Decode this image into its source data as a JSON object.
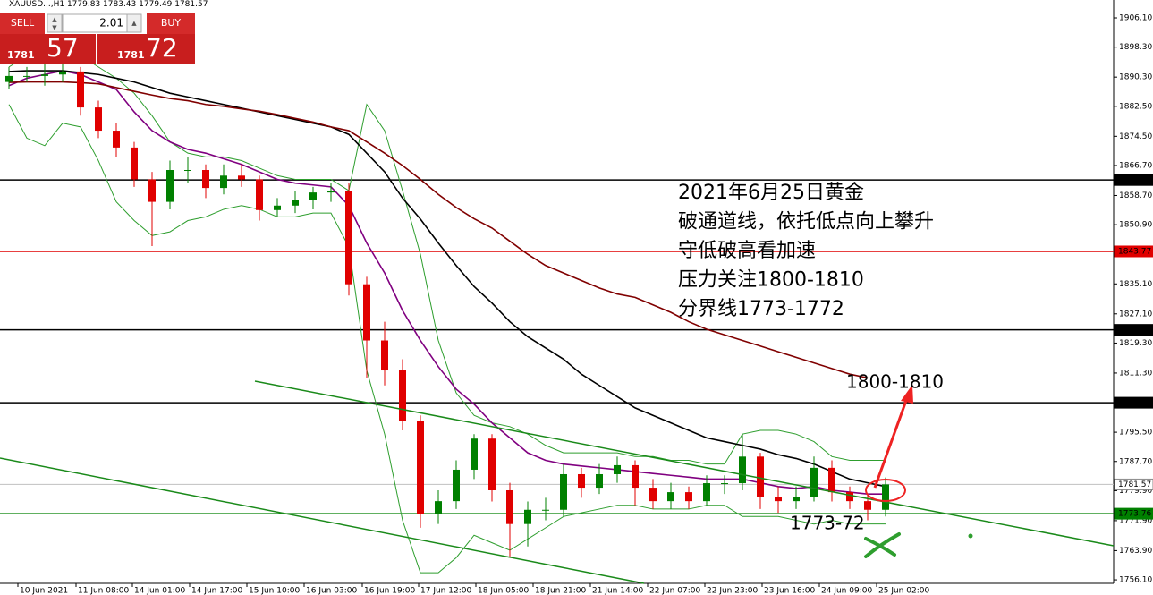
{
  "ui": {
    "symbol": "XAUUSD...,H1",
    "ohlc": [
      1779.83,
      1783.43,
      1779.49,
      1781.57
    ],
    "sell": "SELL",
    "buy": "BUY",
    "lot": 2.01,
    "sell_small": "1781",
    "sell_big": "57",
    "buy_small": "1781",
    "buy_big": "72"
  },
  "chart_data": {
    "type": "candlestick",
    "annotations": [
      "2021年6月25日黄金",
      "破通道线，依托低点向上攀升",
      "守低破高看加速",
      "压力关注1800-1810",
      "分界线1773-1772"
    ],
    "target_label": "1800-1810",
    "support_label": "1773-72",
    "categories": [
      null,
      null,
      null,
      null,
      null,
      null,
      null,
      null,
      null,
      null,
      null,
      null,
      null,
      null,
      null,
      null,
      null,
      null,
      null,
      null,
      null,
      null,
      null,
      null,
      null,
      null,
      null,
      null,
      null,
      null,
      null,
      null,
      null,
      null,
      null,
      null,
      null,
      null,
      null,
      null,
      null,
      null,
      null,
      null,
      null,
      null,
      null,
      null,
      null,
      null
    ],
    "open": [
      1889,
      1890.6,
      1890.6,
      1891,
      1891.8,
      1882.2,
      1876,
      1871.5,
      1863,
      1857,
      1865.5,
      1865.5,
      1860.7,
      1864,
      1863,
      1854.8,
      1856,
      1857.5,
      1859.5,
      1860,
      1835,
      1820,
      1812,
      1798.6,
      1773.6,
      1777.1,
      1785.5,
      1793.8,
      1780,
      1771,
      1774.8,
      1774.8,
      1784.3,
      1780.7,
      1784.3,
      1786.7,
      1780.7,
      1777.1,
      1779.5,
      1777.1,
      1781.9,
      1781.9,
      1789,
      1778.3,
      1777.1,
      1778.3,
      1786,
      1779.5,
      1777.1,
      1774.8
    ],
    "high": [
      1893,
      1893,
      1894,
      1894,
      1893,
      1884,
      1878,
      1873,
      1865,
      1868,
      1869,
      1867,
      1867,
      1867,
      1864,
      1858,
      1860,
      1861,
      1862,
      1862,
      1837,
      1825,
      1815,
      1800,
      1780,
      1788,
      1795,
      1795,
      1782,
      1777,
      1778,
      1787,
      1786,
      1787,
      1789,
      1788,
      1783,
      1782,
      1781,
      1784,
      1784,
      1795,
      1790,
      1781,
      1781,
      1789,
      1788,
      1781,
      1779,
      1783.43
    ],
    "low": [
      1887,
      1889,
      1888,
      1889,
      1880,
      1874,
      1869,
      1861,
      1845.2,
      1855,
      1862,
      1858,
      1859,
      1861,
      1852,
      1853,
      1854,
      1855,
      1857,
      1832,
      1810,
      1808,
      1796,
      1770,
      1771,
      1775,
      1783,
      1777,
      1762,
      1765,
      1772,
      1773,
      1778,
      1779,
      1782,
      1776,
      1775,
      1775,
      1775,
      1776,
      1779,
      1780,
      1775,
      1774,
      1775,
      1777,
      1777,
      1775,
      1772,
      1773
    ],
    "close": [
      1890.6,
      1890.6,
      1891,
      1891.8,
      1882.2,
      1876,
      1871.5,
      1863,
      1857,
      1865.5,
      1865.5,
      1860.7,
      1864,
      1863,
      1854.8,
      1856,
      1857.5,
      1859.5,
      1860,
      1835,
      1820,
      1812,
      1798.6,
      1773.6,
      1777.1,
      1785.5,
      1793.8,
      1780,
      1771,
      1774.8,
      1774.8,
      1784.3,
      1780.7,
      1784.3,
      1786.7,
      1780.7,
      1777.1,
      1779.5,
      1777.1,
      1781.9,
      1781.9,
      1789,
      1778.3,
      1777.1,
      1778.3,
      1786,
      1779.5,
      1777.1,
      1774.8,
      1781.57
    ],
    "up_color": "#008000",
    "down_color": "#e00000",
    "lines": [
      {
        "color": "#2e9e2e",
        "values": [
          1893,
          1896,
          1897,
          1897,
          1896,
          1893,
          1890,
          1886,
          1880,
          1873,
          1870,
          1869,
          1869,
          1868,
          1866,
          1864,
          1863,
          1863,
          1863,
          1860,
          1883,
          1876,
          1860,
          1843,
          1820,
          1806,
          1800,
          1798,
          1797,
          1795,
          1792,
          1790,
          1790,
          1790,
          1790,
          1789,
          1789,
          1788,
          1788,
          1787,
          1787,
          1795,
          1796,
          1796,
          1795,
          1793,
          1789,
          1788,
          1788,
          1788
        ]
      },
      {
        "color": "#2e9e2e",
        "values": [
          1883,
          1874,
          1872,
          1878,
          1877,
          1868,
          1857,
          1852,
          1848,
          1849,
          1852,
          1853,
          1855,
          1856,
          1855,
          1853,
          1853,
          1854,
          1854,
          1845,
          1812,
          1795,
          1772,
          1758,
          1758,
          1762,
          1768,
          1766,
          1764,
          1767,
          1770,
          1773,
          1774,
          1775,
          1776,
          1776,
          1775,
          1775,
          1775,
          1776,
          1776,
          1773,
          1773,
          1773,
          1772,
          1771,
          1772,
          1771,
          1771,
          1771
        ]
      },
      {
        "color": "#800080",
        "values": [
          1888,
          1890,
          1891,
          1892,
          1891,
          1889,
          1887,
          1881,
          1876,
          1873,
          1871,
          1870,
          1868.5,
          1867,
          1865,
          1863,
          1862,
          1861.5,
          1861,
          1856,
          1846,
          1838,
          1828,
          1820,
          1813,
          1807,
          1803,
          1798,
          1794,
          1790,
          1788,
          1787,
          1786.5,
          1786,
          1785.5,
          1785,
          1784.5,
          1784,
          1783.5,
          1783,
          1783,
          1783,
          1782,
          1781,
          1780.5,
          1781,
          1780,
          1779.5,
          1779,
          1779
        ]
      },
      {
        "color": "#000000",
        "values": [
          1891.8,
          1892,
          1892,
          1892,
          1891.5,
          1891,
          1890,
          1889,
          1887.5,
          1886,
          1885,
          1884,
          1883,
          1882,
          1881,
          1880,
          1879,
          1878,
          1877,
          1875,
          1870,
          1865,
          1858,
          1852.4,
          1846,
          1840,
          1834.4,
          1830,
          1825,
          1821,
          1818,
          1815,
          1811,
          1808,
          1805,
          1802,
          1800,
          1798,
          1796,
          1794,
          1793,
          1792,
          1791,
          1789.5,
          1788.5,
          1787,
          1785,
          1783,
          1782,
          1781
        ]
      },
      {
        "color": "#800000",
        "values": [
          1888.9,
          1889,
          1889,
          1889,
          1888.8,
          1888.5,
          1887.5,
          1886.5,
          1885.5,
          1884.6,
          1884,
          1883,
          1882.5,
          1881.8,
          1881.2,
          1880.3,
          1879.3,
          1878.3,
          1877,
          1876,
          1873,
          1870,
          1866.7,
          1863,
          1859,
          1855.5,
          1852.5,
          1850,
          1846.5,
          1843,
          1840,
          1838,
          1836,
          1834,
          1832.4,
          1831.5,
          1829.5,
          1827.5,
          1825,
          1823,
          1821.5,
          1820,
          1818.5,
          1817,
          1815.5,
          1814,
          1812.5,
          1811,
          1810,
          null
        ]
      }
    ],
    "levels": [
      {
        "value": 1862.83,
        "color": "#000000"
      },
      {
        "value": 1843.77,
        "color": "#e00000"
      },
      {
        "value": 1822.83,
        "color": "#000000"
      },
      {
        "value": 1803.38,
        "color": "#000000"
      },
      {
        "value": 1781.57,
        "color": "#c0c0c0"
      },
      {
        "value": 1773.76,
        "color": "#008000"
      }
    ],
    "ylim": [
      1755.16,
      1910.88
    ],
    "yticks": [
      {
        "value": 1906.1,
        "label": "1906.10"
      },
      {
        "value": 1898.3,
        "label": "1898.30"
      },
      {
        "value": 1890.3,
        "label": "1890.30"
      },
      {
        "value": 1882.5,
        "label": "1882.50"
      },
      {
        "value": 1874.5,
        "label": "1874.50"
      },
      {
        "value": 1866.7,
        "label": "1866.70"
      },
      {
        "value": 1858.7,
        "label": "1858.70"
      },
      {
        "value": 1850.9,
        "label": "1850.90"
      },
      {
        "value": 1835.1,
        "label": "1835.10"
      },
      {
        "value": 1827.1,
        "label": "1827.10"
      },
      {
        "value": 1819.3,
        "label": "1819.30"
      },
      {
        "value": 1811.3,
        "label": "1811.30"
      },
      {
        "value": 1795.5,
        "label": "1795.50"
      },
      {
        "value": 1787.7,
        "label": "1787.70"
      },
      {
        "value": 1779.9,
        "label": "1779.90"
      },
      {
        "value": 1771.9,
        "label": "1771.90"
      },
      {
        "value": 1763.9,
        "label": "1763.90"
      },
      {
        "value": 1756.1,
        "label": "1756.10"
      }
    ],
    "xticks": [
      {
        "value": 0.5,
        "label": "10 Jun 2021"
      },
      {
        "value": 3.75,
        "label": "11 Jun 08:00"
      },
      {
        "value": 6.9,
        "label": "14 Jun 01:00"
      },
      {
        "value": 10.1,
        "label": "14 Jun 17:00"
      },
      {
        "value": 13.3,
        "label": "15 Jun 10:00"
      },
      {
        "value": 16.5,
        "label": "16 Jun 03:00"
      },
      {
        "value": 19.75,
        "label": "16 Jun 19:00"
      },
      {
        "value": 22.9,
        "label": "17 Jun 12:00"
      },
      {
        "value": 26.1,
        "label": "18 Jun 05:00"
      },
      {
        "value": 29.3,
        "label": "18 Jun 21:00"
      },
      {
        "value": 32.5,
        "label": "21 Jun 14:00"
      },
      {
        "value": 35.7,
        "label": "22 Jun 07:00"
      },
      {
        "value": 38.9,
        "label": "22 Jun 23:00"
      },
      {
        "value": 42.1,
        "label": "23 Jun 16:00"
      },
      {
        "value": 45.3,
        "label": "24 Jun 09:00"
      },
      {
        "value": 48.5,
        "label": "25 Jun 02:00"
      }
    ]
  }
}
